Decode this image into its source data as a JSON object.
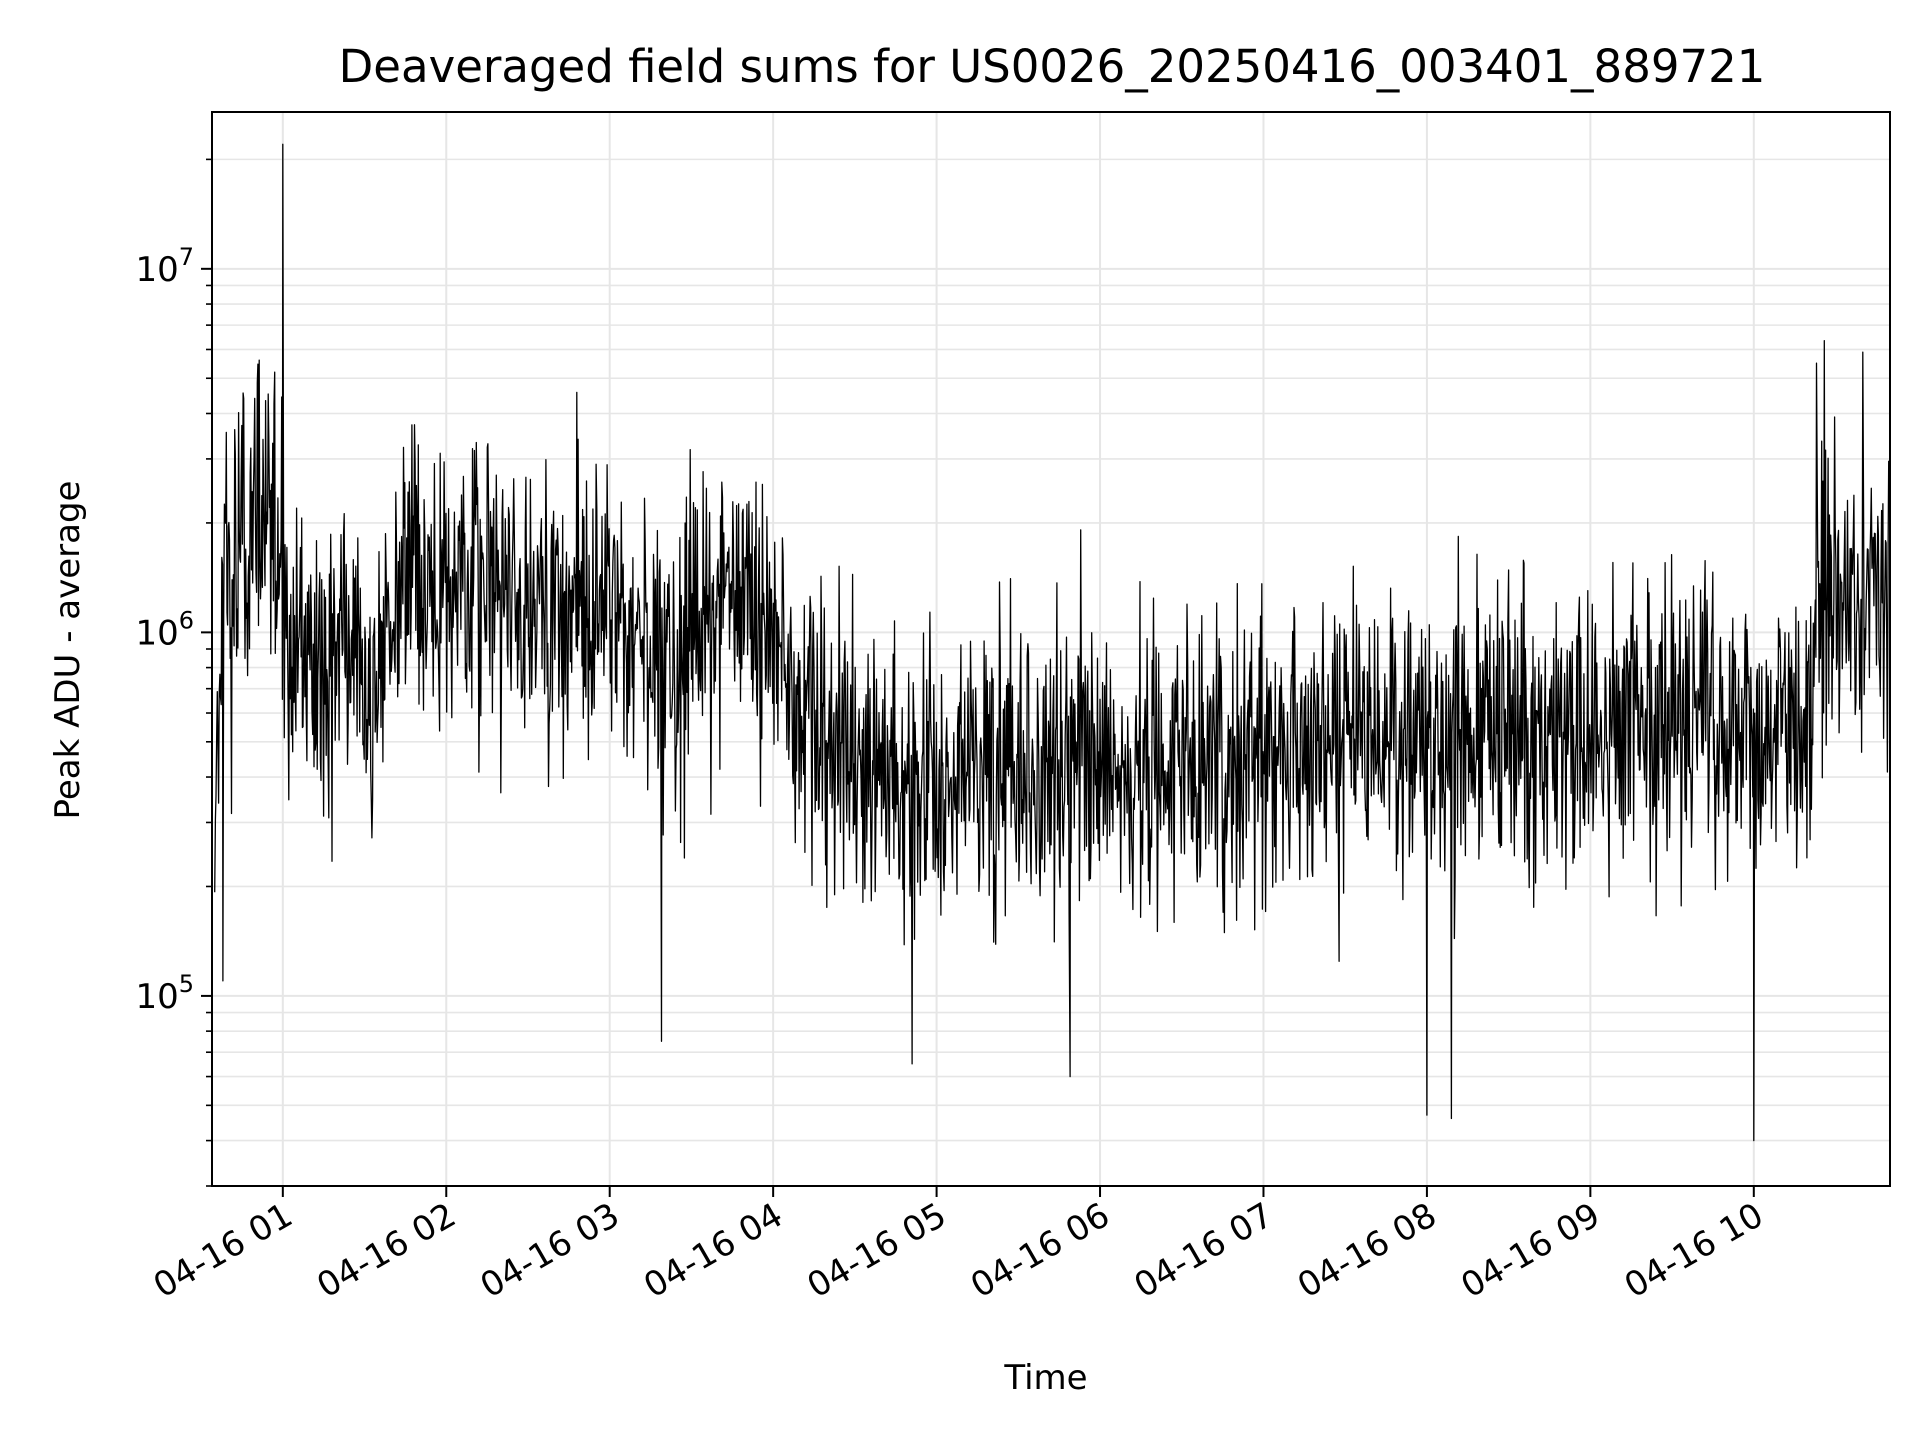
{
  "chart_data": {
    "type": "line",
    "title": "Deaveraged field sums for US0026_20250416_003401_889721",
    "xlabel": "Time",
    "ylabel": "Peak ADU - average",
    "yscale": "log",
    "ylim": [
      30000,
      27000000
    ],
    "xlim": [
      "04-16 00:34",
      "04-16 10:50"
    ],
    "grid": true,
    "line_color": "#000000",
    "x_ticks": [
      "04-16 01",
      "04-16 02",
      "04-16 03",
      "04-16 04",
      "04-16 05",
      "04-16 06",
      "04-16 07",
      "04-16 08",
      "04-16 09",
      "04-16 10"
    ],
    "y_ticks": [
      {
        "base": "10",
        "exp": "5",
        "value": 100000
      },
      {
        "base": "10",
        "exp": "6",
        "value": 1000000
      },
      {
        "base": "10",
        "exp": "7",
        "value": 10000000
      }
    ],
    "series": [
      {
        "name": "",
        "x": [
          "04-16 00:35",
          "04-16 00:38",
          "04-16 00:41",
          "04-16 00:44",
          "04-16 00:47",
          "04-16 00:50",
          "04-16 00:53",
          "04-16 00:56",
          "04-16 01:00",
          "04-16 01:03",
          "04-16 01:08",
          "04-16 01:14",
          "04-16 01:20",
          "04-16 01:26",
          "04-16 01:32",
          "04-16 01:40",
          "04-16 01:50",
          "04-16 02:00",
          "04-16 02:10",
          "04-16 02:20",
          "04-16 02:30",
          "04-16 02:40",
          "04-16 02:50",
          "04-16 03:00",
          "04-16 03:10",
          "04-16 03:20",
          "04-16 03:30",
          "04-16 03:40",
          "04-16 03:50",
          "04-16 04:00",
          "04-16 04:06",
          "04-16 04:12",
          "04-16 04:20",
          "04-16 04:30",
          "04-16 04:40",
          "04-16 04:50",
          "04-16 05:00",
          "04-16 05:10",
          "04-16 05:20",
          "04-16 05:30",
          "04-16 05:40",
          "04-16 05:50",
          "04-16 06:00",
          "04-16 06:10",
          "04-16 06:20",
          "04-16 06:30",
          "04-16 06:40",
          "04-16 06:50",
          "04-16 07:00",
          "04-16 07:10",
          "04-16 07:20",
          "04-16 07:30",
          "04-16 07:40",
          "04-16 07:50",
          "04-16 08:00",
          "04-16 08:10",
          "04-16 08:20",
          "04-16 08:30",
          "04-16 08:40",
          "04-16 08:50",
          "04-16 09:00",
          "04-16 09:10",
          "04-16 09:20",
          "04-16 09:30",
          "04-16 09:40",
          "04-16 09:50",
          "04-16 10:00",
          "04-16 10:06",
          "04-16 10:12",
          "04-16 10:18",
          "04-16 10:22",
          "04-16 10:26",
          "04-16 10:30",
          "04-16 10:34",
          "04-16 10:38",
          "04-16 10:42",
          "04-16 10:46",
          "04-16 10:50"
        ],
        "y": [
          300000,
          1500000,
          1200000,
          2000000,
          1800000,
          2500000,
          1600000,
          2000000,
          1200000,
          800000,
          900000,
          700000,
          1000000,
          800000,
          600000,
          1300000,
          1400000,
          1200000,
          1500000,
          1300000,
          1400000,
          1200000,
          1100000,
          1200000,
          1100000,
          800000,
          1000000,
          1200000,
          1300000,
          1000000,
          700000,
          500000,
          500000,
          450000,
          420000,
          400000,
          420000,
          450000,
          430000,
          450000,
          400000,
          420000,
          430000,
          420000,
          450000,
          440000,
          450000,
          460000,
          480000,
          470000,
          500000,
          480000,
          520000,
          500000,
          530000,
          500000,
          550000,
          520000,
          550000,
          570000,
          560000,
          580000,
          600000,
          580000,
          620000,
          600000,
          580000,
          550000,
          500000,
          450000,
          1000000,
          1300000,
          1100000,
          1200000,
          1300000,
          1250000,
          1350000,
          1500000
        ]
      }
    ],
    "spikes": [
      {
        "x": "04-16 01:00",
        "y": 22000000
      },
      {
        "x": "04-16 00:57",
        "y": 5200000
      },
      {
        "x": "04-16 10:23",
        "y": 5500000
      },
      {
        "x": "04-16 10:40",
        "y": 5900000
      },
      {
        "x": "04-16 02:55",
        "y": 2900000
      },
      {
        "x": "04-16 00:38",
        "y": 110000
      },
      {
        "x": "04-16 03:19",
        "y": 75000
      },
      {
        "x": "04-16 04:51",
        "y": 65000
      },
      {
        "x": "04-16 05:49",
        "y": 60000
      },
      {
        "x": "04-16 08:00",
        "y": 47000
      },
      {
        "x": "04-16 08:09",
        "y": 46000
      },
      {
        "x": "04-16 10:00",
        "y": 40000
      }
    ]
  }
}
